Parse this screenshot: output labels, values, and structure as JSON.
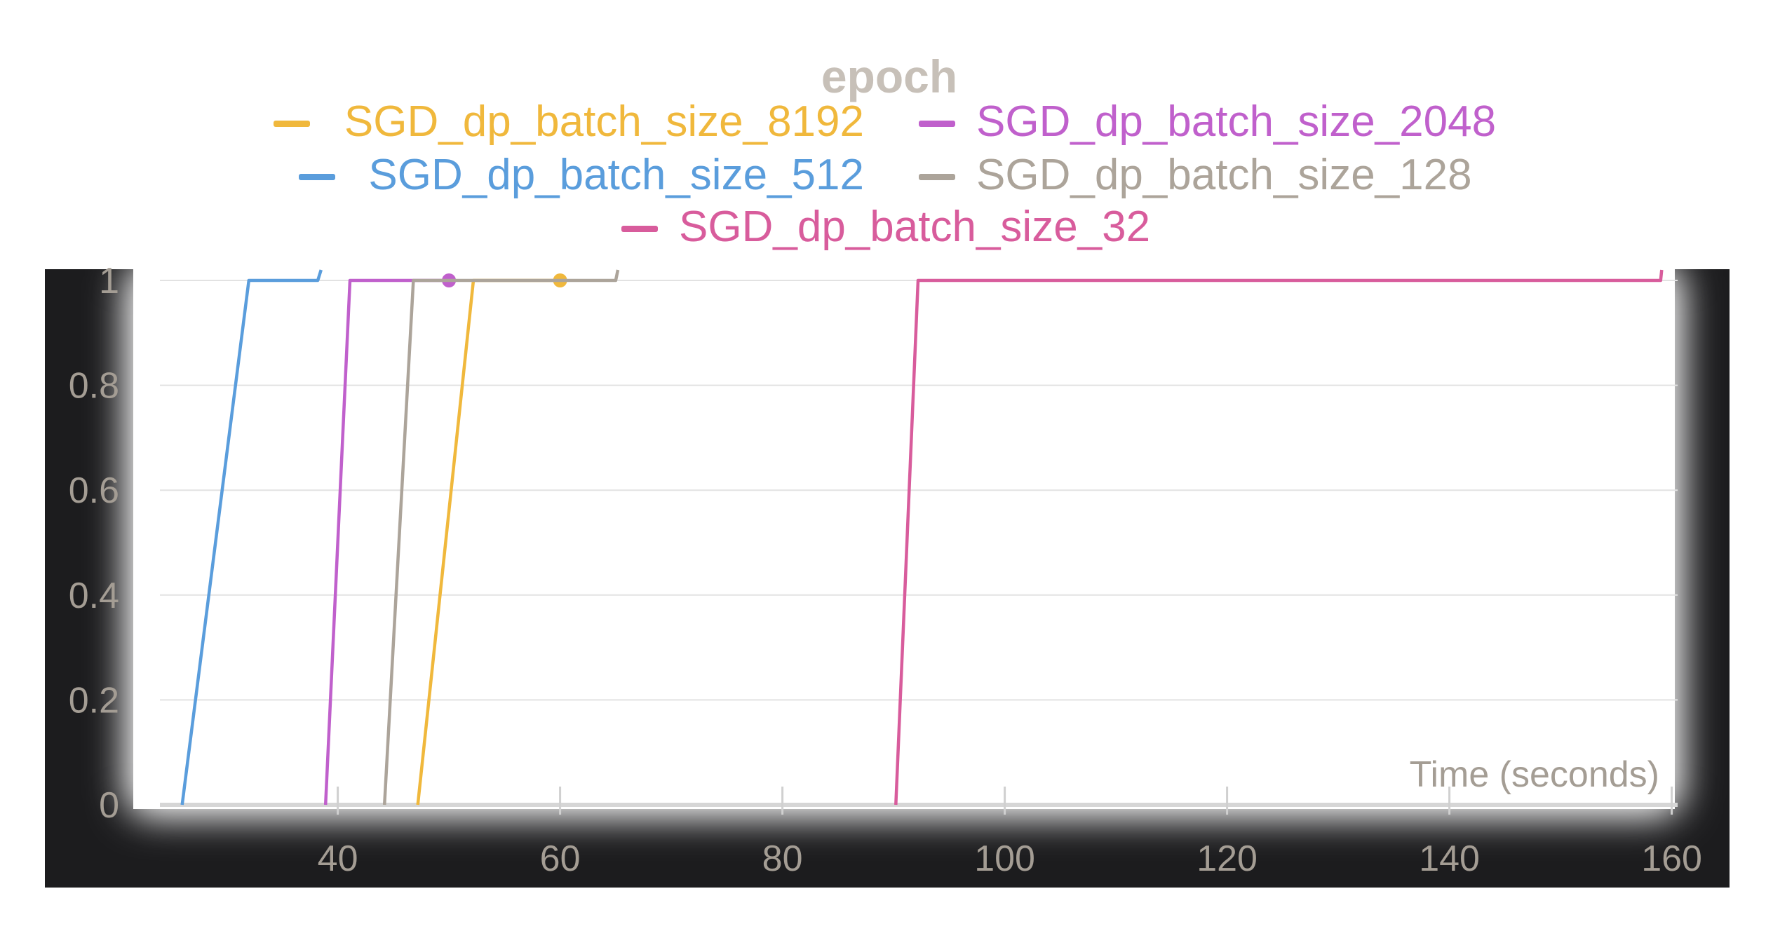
{
  "chart_data": {
    "type": "line",
    "title": "epoch",
    "xlabel": "Time (seconds)",
    "ylabel": "",
    "xlim": [
      24,
      162
    ],
    "ylim": [
      0,
      1
    ],
    "x_ticks": [
      40,
      60,
      80,
      100,
      120,
      140,
      160
    ],
    "y_ticks": [
      0,
      0.2,
      0.4,
      0.6,
      0.8,
      1
    ],
    "x_tick_labels": [
      "40",
      "60",
      "80",
      "100",
      "120",
      "140",
      "160"
    ],
    "y_tick_labels": [
      "0",
      "0.2",
      "0.4",
      "0.6",
      "0.8",
      "1"
    ],
    "grid": true,
    "legend_position": "top-center",
    "series": [
      {
        "name": "SGD_dp_batch_size_8192",
        "color": "#f0b83c",
        "points": [
          [
            47.2,
            0
          ],
          [
            52.2,
            1
          ],
          [
            60,
            1
          ]
        ],
        "end_marker": true
      },
      {
        "name": "SGD_dp_batch_size_2048",
        "color": "#c060cc",
        "points": [
          [
            38.9,
            0
          ],
          [
            41.1,
            1
          ],
          [
            50,
            1
          ]
        ],
        "end_marker": true
      },
      {
        "name": "SGD_dp_batch_size_512",
        "color": "#5a9ddc",
        "points": [
          [
            26,
            0
          ],
          [
            32,
            1
          ],
          [
            38.2,
            1
          ],
          [
            38.5,
            1.02
          ]
        ],
        "end_marker": false
      },
      {
        "name": "SGD_dp_batch_size_128",
        "color": "#aca49a",
        "points": [
          [
            44.2,
            0
          ],
          [
            46.8,
            1
          ],
          [
            65,
            1
          ],
          [
            65.2,
            1.02
          ]
        ],
        "end_marker": false
      },
      {
        "name": "SGD_dp_batch_size_32",
        "color": "#d85c9c",
        "points": [
          [
            90.2,
            0
          ],
          [
            92.2,
            1
          ],
          [
            159,
            1
          ],
          [
            159.1,
            1.02
          ]
        ],
        "end_marker": false
      }
    ]
  }
}
